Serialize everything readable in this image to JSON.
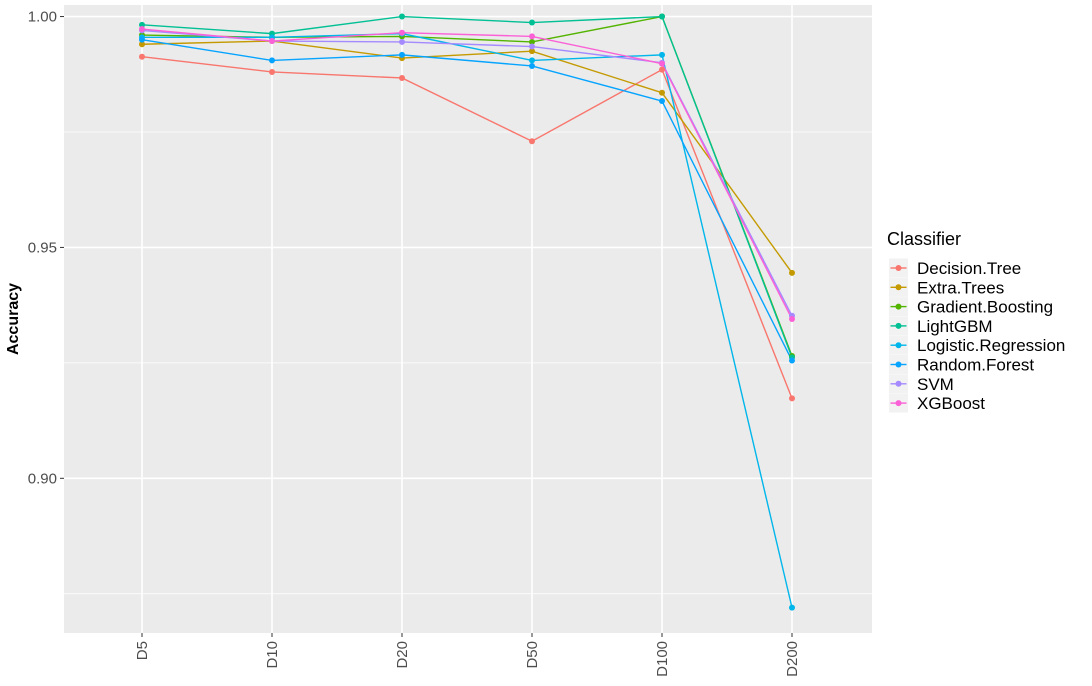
{
  "chart_data": {
    "type": "line",
    "title": "",
    "xlabel": "",
    "ylabel": "Accuracy",
    "categories": [
      "D5",
      "D10",
      "D20",
      "D50",
      "D100",
      "D200"
    ],
    "ylim": [
      0.8665,
      1.0025
    ],
    "yticks": [
      0.9,
      0.95,
      1.0
    ],
    "ytick_labels": [
      "0.90",
      "0.95",
      "1.00"
    ],
    "grid": true,
    "legend": {
      "title": "Classifier",
      "position": "right"
    },
    "series": [
      {
        "name": "Decision.Tree",
        "color": "#F8766D",
        "values": [
          0.9913,
          0.988,
          0.9867,
          0.973,
          0.9885,
          0.9173
        ]
      },
      {
        "name": "Extra.Trees",
        "color": "#C49A00",
        "values": [
          0.994,
          0.9947,
          0.991,
          0.9925,
          0.9835,
          0.9445
        ]
      },
      {
        "name": "Gradient.Boosting",
        "color": "#53B400",
        "values": [
          0.996,
          0.9955,
          0.9957,
          0.9945,
          1.0,
          0.9265
        ]
      },
      {
        "name": "LightGBM",
        "color": "#00C094",
        "values": [
          0.9982,
          0.9963,
          1.0,
          0.9987,
          1.0,
          0.9262
        ]
      },
      {
        "name": "Logistic.Regression",
        "color": "#00B6EB",
        "values": [
          0.9955,
          0.9955,
          0.9963,
          0.9905,
          0.9917,
          0.872
        ]
      },
      {
        "name": "Random.Forest",
        "color": "#06A4FF",
        "values": [
          0.995,
          0.9905,
          0.9917,
          0.9893,
          0.9817,
          0.9255
        ]
      },
      {
        "name": "SVM",
        "color": "#A58AFF",
        "values": [
          0.997,
          0.9947,
          0.9945,
          0.9935,
          0.99,
          0.9352
        ]
      },
      {
        "name": "XGBoost",
        "color": "#FB61D7",
        "values": [
          0.9973,
          0.9947,
          0.9965,
          0.9957,
          0.9898,
          0.9345
        ]
      }
    ]
  }
}
